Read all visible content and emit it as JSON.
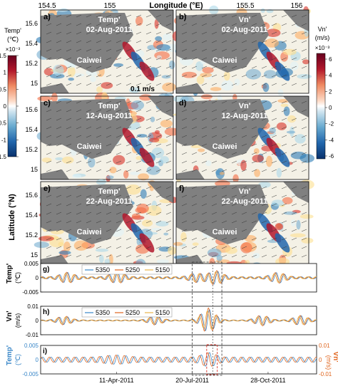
{
  "figure": {
    "top_axis": {
      "label": "Longitude (°E)",
      "ticks": [
        "154.5",
        "155",
        "155.5",
        "156"
      ]
    },
    "left_axis_label": "Latitude (°N)",
    "map_yticks": [
      "15.6",
      "15.4",
      "15.2",
      "15"
    ],
    "island_name": "Caiwei",
    "scale_label": "0.1 m/s",
    "panels": [
      {
        "letter": "a)",
        "variable": "Temp'",
        "date": "02-Aug-2011"
      },
      {
        "letter": "b)",
        "variable": "Vn'",
        "date": "02-Aug-2011"
      },
      {
        "letter": "c)",
        "variable": "Temp'",
        "date": "12-Aug-2011"
      },
      {
        "letter": "d)",
        "variable": "Vn'",
        "date": "12-Aug-2011"
      },
      {
        "letter": "e)",
        "variable": "Temp'",
        "date": "22-Aug-2011"
      },
      {
        "letter": "f)",
        "variable": "Vn'",
        "date": "22-Aug-2011"
      }
    ],
    "colorbar_left": {
      "title": "Temp'",
      "unit": "(℃)",
      "exponent": "×10⁻³",
      "ticks": [
        "1.5",
        "1",
        "0.5",
        "0",
        "-0.5",
        "-1",
        "-1.5"
      ],
      "range": [
        -1.5,
        1.5
      ],
      "colors": [
        "#08306b",
        "#2166ac",
        "#67a9cf",
        "#d1e5f0",
        "#ffffff",
        "#fddbc7",
        "#ef8a62",
        "#b2182b",
        "#67001f"
      ]
    },
    "colorbar_right": {
      "title": "Vn'",
      "unit": "(m/s)",
      "exponent": "×10⁻³",
      "ticks": [
        "6",
        "4",
        "2",
        "0",
        "-2",
        "-4",
        "-6"
      ],
      "range": [
        -6.5,
        6.5
      ]
    },
    "land_color": "#808080",
    "series_colors": {
      "5350": "#3a87c8",
      "5250": "#e0651e",
      "5150": "#e8b54a"
    }
  },
  "chart_data": [
    {
      "type": "line",
      "panel": "g)",
      "ylabel": "Temp'",
      "yunit": "(℃)",
      "yticks": [
        "0.005",
        "0",
        "-0.005"
      ],
      "ylim": [
        -0.005,
        0.005
      ],
      "legend": [
        "5350",
        "5250",
        "5150"
      ],
      "legend_position": "top-left",
      "xlim": [
        "2011-01-01",
        "2011-12-31"
      ],
      "series": [
        {
          "name": "5350",
          "peaks": [
            [
              "2011-02-05",
              0.0015
            ],
            [
              "2011-04-12",
              0.0016
            ],
            [
              "2011-07-25",
              0.0012
            ],
            [
              "2011-08-20",
              0.002
            ],
            [
              "2011-11-10",
              0.0015
            ]
          ]
        },
        {
          "name": "5250",
          "peaks": [
            [
              "2011-02-05",
              0.0016
            ],
            [
              "2011-04-12",
              0.0017
            ],
            [
              "2011-07-25",
              0.0013
            ],
            [
              "2011-08-20",
              0.0022
            ],
            [
              "2011-11-10",
              0.0016
            ]
          ]
        },
        {
          "name": "5150",
          "peaks": [
            [
              "2011-02-05",
              0.0013
            ],
            [
              "2011-04-12",
              0.0014
            ],
            [
              "2011-07-25",
              0.0011
            ],
            [
              "2011-08-20",
              0.0018
            ],
            [
              "2011-11-10",
              0.0013
            ]
          ]
        }
      ]
    },
    {
      "type": "line",
      "panel": "h)",
      "ylabel": "Vn'",
      "yunit": "(m/s)",
      "yticks": [
        "0.01",
        "0",
        "-0.01"
      ],
      "ylim": [
        -0.01,
        0.01
      ],
      "legend": [
        "5350",
        "5250",
        "5150"
      ],
      "legend_position": "top-left",
      "series": [
        {
          "name": "5350",
          "peaks": [
            [
              "2011-02-01",
              0.0025
            ],
            [
              "2011-06-01",
              0.0025
            ],
            [
              "2011-08-10",
              0.0075
            ],
            [
              "2011-10-20",
              0.003
            ],
            [
              "2011-12-10",
              0.003
            ]
          ]
        },
        {
          "name": "5250",
          "peaks": [
            [
              "2011-02-01",
              0.0028
            ],
            [
              "2011-06-01",
              0.0028
            ],
            [
              "2011-08-10",
              0.0085
            ],
            [
              "2011-10-20",
              0.0035
            ],
            [
              "2011-12-10",
              0.0032
            ]
          ]
        },
        {
          "name": "5150",
          "peaks": [
            [
              "2011-02-01",
              0.0022
            ],
            [
              "2011-06-01",
              0.0022
            ],
            [
              "2011-08-10",
              0.0065
            ],
            [
              "2011-10-20",
              0.0028
            ],
            [
              "2011-12-10",
              0.0026
            ]
          ]
        }
      ]
    },
    {
      "type": "line",
      "panel": "i)",
      "ylabel_left": "Temp'",
      "yunit_left": "(℃)",
      "yticks_left": [
        "0.005",
        "0",
        "-0.005"
      ],
      "ylabel_right": "Vn'",
      "yunit_right": "(m/s)",
      "yticks_right": [
        "0.01",
        "0",
        "-0.01"
      ],
      "xticks": [
        "11-Apr-2011",
        "20-Jul-2011",
        "28-Oct-2011"
      ],
      "series": [
        {
          "axis": "left",
          "color": "#3a87c8",
          "peak": 0.0016
        },
        {
          "axis": "right",
          "color": "#e0651e",
          "peak": 0.0085
        }
      ]
    }
  ]
}
